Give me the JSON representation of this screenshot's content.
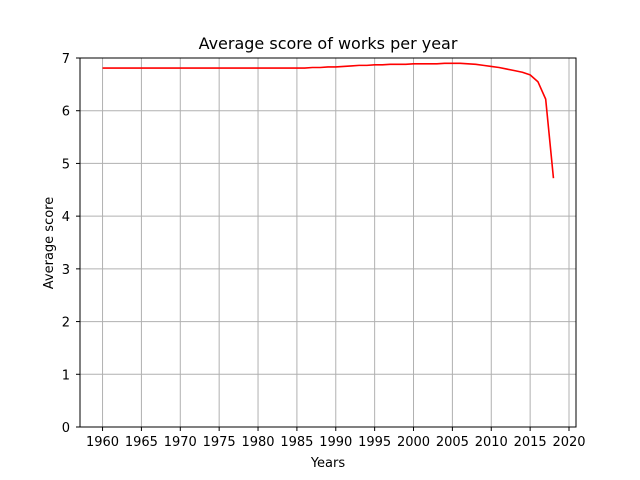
{
  "chart_data": {
    "type": "line",
    "title": "Average score of works per year",
    "xlabel": "Years",
    "ylabel": "Average score",
    "xlim": [
      1957.1,
      2020.9
    ],
    "ylim": [
      0,
      7
    ],
    "xticks": [
      1960,
      1965,
      1970,
      1975,
      1980,
      1985,
      1990,
      1995,
      2000,
      2005,
      2010,
      2015,
      2020
    ],
    "yticks": [
      0,
      1,
      2,
      3,
      4,
      5,
      6,
      7
    ],
    "grid": true,
    "legend": "none",
    "series": [
      {
        "color": "#ff0000",
        "x": [
          1960,
          1961,
          1962,
          1963,
          1964,
          1965,
          1966,
          1967,
          1968,
          1969,
          1970,
          1971,
          1972,
          1973,
          1974,
          1975,
          1976,
          1977,
          1978,
          1979,
          1980,
          1981,
          1982,
          1983,
          1984,
          1985,
          1986,
          1987,
          1988,
          1989,
          1990,
          1991,
          1992,
          1993,
          1994,
          1995,
          1996,
          1997,
          1998,
          1999,
          2000,
          2001,
          2002,
          2003,
          2004,
          2005,
          2006,
          2007,
          2008,
          2009,
          2010,
          2011,
          2012,
          2013,
          2014,
          2015,
          2016,
          2017,
          2018
        ],
        "y": [
          6.81,
          6.81,
          6.81,
          6.81,
          6.81,
          6.81,
          6.81,
          6.81,
          6.81,
          6.81,
          6.81,
          6.81,
          6.81,
          6.81,
          6.81,
          6.81,
          6.81,
          6.81,
          6.81,
          6.81,
          6.81,
          6.81,
          6.81,
          6.81,
          6.81,
          6.81,
          6.81,
          6.82,
          6.82,
          6.83,
          6.83,
          6.84,
          6.85,
          6.86,
          6.86,
          6.87,
          6.87,
          6.88,
          6.88,
          6.88,
          6.89,
          6.89,
          6.89,
          6.89,
          6.9,
          6.9,
          6.9,
          6.89,
          6.88,
          6.86,
          6.84,
          6.82,
          6.79,
          6.76,
          6.73,
          6.68,
          6.55,
          6.22,
          4.72
        ]
      }
    ]
  }
}
